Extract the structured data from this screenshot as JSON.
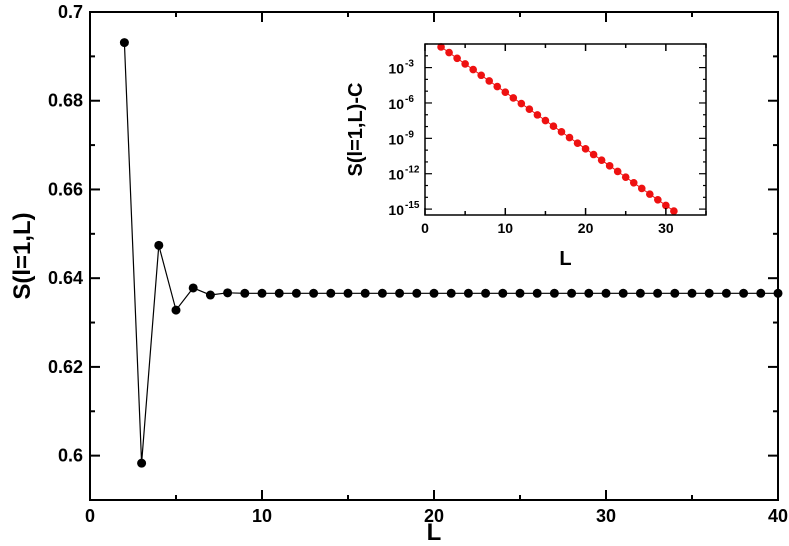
{
  "chart_data": [
    {
      "type": "line",
      "markers": true,
      "xlabel": "L",
      "ylabel": "S(l=1,L)",
      "xlim": [
        0,
        40
      ],
      "ylim": [
        0.59,
        0.7
      ],
      "xticks": [
        0,
        10,
        20,
        30,
        40
      ],
      "yticks": [
        0.6,
        0.62,
        0.64,
        0.66,
        0.68,
        0.7
      ],
      "xtick_labels": [
        "0",
        "10",
        "20",
        "30",
        "40"
      ],
      "ytick_labels": [
        "0.6",
        "0.62",
        "0.64",
        "0.66",
        "0.68",
        "0.7"
      ],
      "grid": false,
      "line_color": "#000000",
      "marker_color": "#000000",
      "series": [
        {
          "x": [
            2,
            3,
            4,
            5,
            6,
            7,
            8,
            9,
            10,
            11,
            12,
            13,
            14,
            15,
            16,
            17,
            18,
            19,
            20,
            21,
            22,
            23,
            24,
            25,
            26,
            27,
            28,
            29,
            30,
            31,
            32,
            33,
            34,
            35,
            36,
            37,
            38,
            39,
            40
          ],
          "y": [
            0.6931,
            0.5983,
            0.6474,
            0.6328,
            0.6378,
            0.6362,
            0.6367,
            0.6366,
            0.6366,
            0.6366,
            0.6366,
            0.6366,
            0.6366,
            0.6366,
            0.6366,
            0.6366,
            0.6366,
            0.6366,
            0.6366,
            0.6366,
            0.6366,
            0.6366,
            0.6366,
            0.6366,
            0.6366,
            0.6366,
            0.6366,
            0.6366,
            0.6366,
            0.6366,
            0.6366,
            0.6366,
            0.6366,
            0.6366,
            0.6366,
            0.6366,
            0.6366,
            0.6366,
            0.6366
          ]
        }
      ]
    },
    {
      "type": "scatter",
      "inset": true,
      "xlabel": "L",
      "ylabel": "S(l=1,L)-C",
      "yscale": "log",
      "xlim": [
        0,
        35
      ],
      "ylim_log10": [
        -15.5,
        -1.0
      ],
      "xticks": [
        0,
        10,
        20,
        30
      ],
      "xtick_labels": [
        "0",
        "10",
        "20",
        "30"
      ],
      "yticks_exponents": [
        -3,
        -6,
        -9,
        -12,
        -15
      ],
      "ytick_labels": [
        "10",
        "10",
        "10",
        "10",
        "10"
      ],
      "ytick_exponent_labels": [
        "-3",
        "-6",
        "-9",
        "-12",
        "-15"
      ],
      "grid": false,
      "marker_color": "#ee1111",
      "line_color": "#ee1111",
      "series": [
        {
          "x": [
            2,
            3,
            4,
            5,
            6,
            7,
            8,
            9,
            10,
            11,
            12,
            13,
            14,
            15,
            16,
            17,
            18,
            19,
            20,
            21,
            22,
            23,
            24,
            25,
            26,
            27,
            28,
            29,
            30,
            31
          ],
          "log10_y": [
            -1.25,
            -1.73,
            -2.21,
            -2.69,
            -3.17,
            -3.65,
            -4.13,
            -4.61,
            -5.09,
            -5.57,
            -6.05,
            -6.53,
            -7.01,
            -7.49,
            -7.97,
            -8.45,
            -8.93,
            -9.41,
            -9.89,
            -10.37,
            -10.85,
            -11.33,
            -11.81,
            -12.29,
            -12.77,
            -13.25,
            -13.73,
            -14.21,
            -14.69,
            -15.17
          ]
        }
      ]
    }
  ]
}
